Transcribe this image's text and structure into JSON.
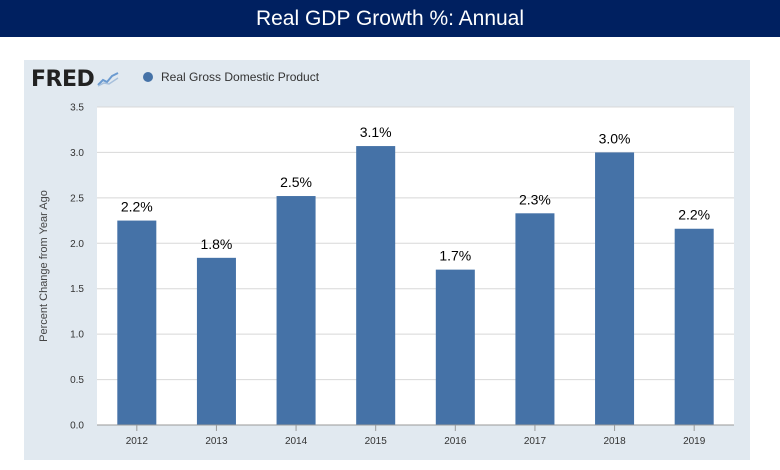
{
  "page_title": "Real GDP Growth %:  Annual",
  "logo_text": "FRED",
  "legend_label": "Real Gross Domestic Product",
  "chart_data": {
    "type": "bar",
    "title": "Real GDP Growth %:  Annual",
    "xlabel": "",
    "ylabel": "Percent Change from Year Ago",
    "categories": [
      "2012",
      "2013",
      "2014",
      "2015",
      "2016",
      "2017",
      "2018",
      "2019"
    ],
    "series": [
      {
        "name": "Real Gross Domestic Product",
        "values": [
          2.25,
          1.84,
          2.52,
          3.07,
          1.71,
          2.33,
          3.0,
          2.16
        ],
        "data_labels": [
          "2.2%",
          "1.8%",
          "2.5%",
          "3.1%",
          "1.7%",
          "2.3%",
          "3.0%",
          "2.2%"
        ]
      }
    ],
    "ylim": [
      0,
      3.5
    ],
    "yticks": [
      "0.0",
      "0.5",
      "1.0",
      "1.5",
      "2.0",
      "2.5",
      "3.0",
      "3.5"
    ],
    "grid": true,
    "legend_position": "top-left",
    "colors": {
      "bar": "#4572a7",
      "grid": "#d8d8d8",
      "plot_background": "#ffffff",
      "panel_background": "#e1e9f0",
      "title_background": "#002060"
    }
  }
}
